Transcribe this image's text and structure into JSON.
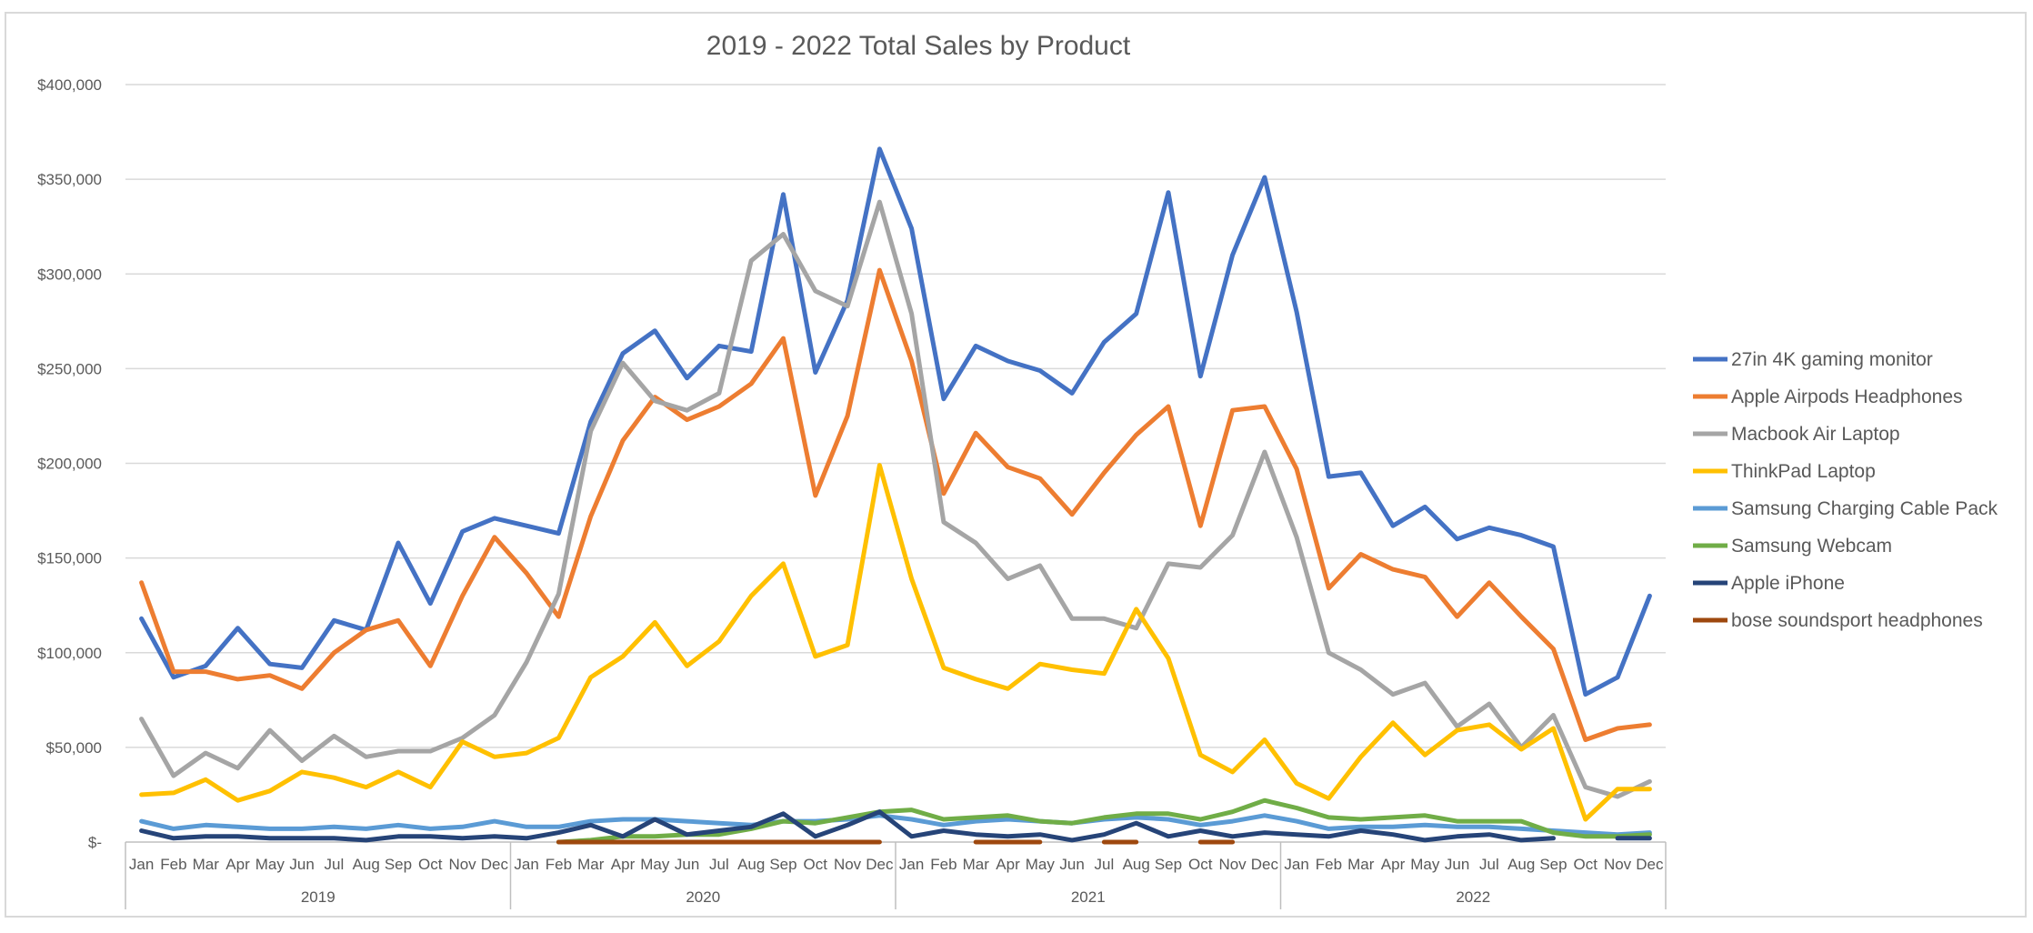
{
  "chart_data": {
    "type": "line",
    "title": "2019 - 2022 Total Sales by Product",
    "ylim": [
      0,
      400000
    ],
    "y_ticks": [
      {
        "value": 0,
        "label": "$-"
      },
      {
        "value": 50000,
        "label": "$50,000"
      },
      {
        "value": 100000,
        "label": "$100,000"
      },
      {
        "value": 150000,
        "label": "$150,000"
      },
      {
        "value": 200000,
        "label": "$200,000"
      },
      {
        "value": 250000,
        "label": "$250,000"
      },
      {
        "value": 300000,
        "label": "$300,000"
      },
      {
        "value": 350000,
        "label": "$350,000"
      },
      {
        "value": 400000,
        "label": "$400,000"
      }
    ],
    "years": [
      "2019",
      "2020",
      "2021",
      "2022"
    ],
    "months": [
      "Jan",
      "Feb",
      "Mar",
      "Apr",
      "May",
      "Jun",
      "Jul",
      "Aug",
      "Sep",
      "Oct",
      "Nov",
      "Dec"
    ],
    "grid": true,
    "legend_position": "right",
    "series": [
      {
        "name": "27in 4K gaming monitor",
        "color": "#4472c4",
        "values": [
          118000,
          87000,
          93000,
          113000,
          94000,
          92000,
          117000,
          112000,
          158000,
          126000,
          164000,
          171000,
          167000,
          163000,
          222000,
          258000,
          270000,
          245000,
          262000,
          259000,
          342000,
          248000,
          286000,
          366000,
          324000,
          234000,
          262000,
          254000,
          249000,
          237000,
          264000,
          279000,
          343000,
          246000,
          310000,
          351000,
          280000,
          193000,
          195000,
          167000,
          177000,
          160000,
          166000,
          162000,
          156000,
          78000,
          87000,
          130000
        ]
      },
      {
        "name": "Apple Airpods Headphones",
        "color": "#ed7d31",
        "values": [
          137000,
          90000,
          90000,
          86000,
          88000,
          81000,
          100000,
          112000,
          117000,
          93000,
          130000,
          161000,
          142000,
          119000,
          172000,
          212000,
          235000,
          223000,
          230000,
          242000,
          266000,
          183000,
          225000,
          302000,
          254000,
          184000,
          216000,
          198000,
          192000,
          173000,
          195000,
          215000,
          230000,
          167000,
          228000,
          230000,
          197000,
          134000,
          152000,
          144000,
          140000,
          119000,
          137000,
          119000,
          102000,
          54000,
          60000,
          62000
        ]
      },
      {
        "name": "Macbook Air Laptop",
        "color": "#a5a5a5",
        "values": [
          65000,
          35000,
          47000,
          39000,
          59000,
          43000,
          56000,
          45000,
          48000,
          48000,
          55000,
          67000,
          95000,
          131000,
          217000,
          253000,
          233000,
          228000,
          237000,
          307000,
          321000,
          291000,
          283000,
          338000,
          279000,
          169000,
          158000,
          139000,
          146000,
          118000,
          118000,
          113000,
          147000,
          145000,
          162000,
          206000,
          161000,
          100000,
          91000,
          78000,
          84000,
          61000,
          73000,
          50000,
          67000,
          29000,
          24000,
          32000
        ]
      },
      {
        "name": "ThinkPad Laptop",
        "color": "#ffc000",
        "values": [
          25000,
          26000,
          33000,
          22000,
          27000,
          37000,
          34000,
          29000,
          37000,
          29000,
          53000,
          45000,
          47000,
          55000,
          87000,
          98000,
          116000,
          93000,
          106000,
          130000,
          147000,
          98000,
          104000,
          199000,
          139000,
          92000,
          86000,
          81000,
          94000,
          91000,
          89000,
          123000,
          97000,
          46000,
          37000,
          54000,
          31000,
          23000,
          45000,
          63000,
          46000,
          59000,
          62000,
          49000,
          60000,
          12000,
          28000,
          28000
        ]
      },
      {
        "name": "Samsung Charging Cable Pack",
        "color": "#5b9bd5",
        "values": [
          11000,
          7000,
          9000,
          8000,
          7000,
          7000,
          8000,
          7000,
          9000,
          7000,
          8000,
          11000,
          8000,
          8000,
          11000,
          12000,
          12000,
          11000,
          10000,
          9000,
          11000,
          11000,
          12000,
          14000,
          12000,
          9000,
          11000,
          12000,
          11000,
          10000,
          12000,
          13000,
          12000,
          9000,
          11000,
          14000,
          11000,
          7000,
          8000,
          8000,
          9000,
          8000,
          8000,
          7000,
          6000,
          5000,
          4000,
          5000
        ]
      },
      {
        "name": "Samsung Webcam",
        "color": "#70ad47",
        "values": [
          null,
          null,
          null,
          null,
          null,
          null,
          null,
          null,
          null,
          null,
          null,
          null,
          null,
          0,
          1000,
          3000,
          3000,
          4000,
          4000,
          7000,
          11000,
          10000,
          13000,
          16000,
          17000,
          12000,
          13000,
          14000,
          11000,
          10000,
          13000,
          15000,
          15000,
          12000,
          16000,
          22000,
          18000,
          13000,
          12000,
          13000,
          14000,
          11000,
          11000,
          11000,
          5000,
          3000,
          3000,
          4000
        ]
      },
      {
        "name": "Apple iPhone",
        "color": "#264478",
        "values": [
          6000,
          2000,
          3000,
          3000,
          2000,
          2000,
          2000,
          1000,
          3000,
          3000,
          2000,
          3000,
          2000,
          5000,
          9000,
          3000,
          12000,
          4000,
          6000,
          8000,
          15000,
          3000,
          9000,
          16000,
          3000,
          6000,
          4000,
          3000,
          4000,
          1000,
          4000,
          10000,
          3000,
          6000,
          3000,
          5000,
          4000,
          3000,
          6000,
          4000,
          1000,
          3000,
          4000,
          1000,
          2000,
          null,
          2000,
          2000
        ]
      },
      {
        "name": "bose soundsport headphones",
        "color": "#9e480e",
        "values": [
          null,
          null,
          null,
          null,
          null,
          null,
          null,
          null,
          null,
          null,
          null,
          null,
          null,
          0,
          0,
          0,
          0,
          0,
          0,
          0,
          0,
          0,
          0,
          0,
          null,
          null,
          0,
          0,
          0,
          null,
          0,
          0,
          null,
          0,
          0,
          null,
          null,
          null,
          null,
          null,
          null,
          null,
          null,
          null,
          null,
          null,
          null,
          null
        ]
      }
    ]
  }
}
